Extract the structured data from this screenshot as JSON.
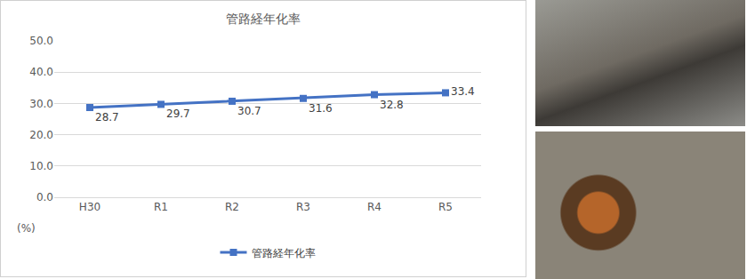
{
  "chart_data": {
    "type": "line",
    "title": "管路経年化率",
    "categories": [
      "H30",
      "R1",
      "R2",
      "R3",
      "R4",
      "R5"
    ],
    "series": [
      {
        "name": "管路経年化率",
        "color": "#4472c4",
        "marker": "square",
        "values": [
          28.7,
          29.7,
          30.7,
          31.6,
          32.8,
          33.4
        ]
      }
    ],
    "ylim": [
      0,
      50
    ],
    "yticks": [
      {
        "value": 0,
        "label": "0.0"
      },
      {
        "value": 10,
        "label": "10.0"
      },
      {
        "value": 20,
        "label": "20.0"
      },
      {
        "value": 30,
        "label": "30.0"
      },
      {
        "value": 40,
        "label": "40.0"
      },
      {
        "value": 50,
        "label": "50.0"
      }
    ],
    "y_label": "(%)",
    "grid": true,
    "data_labels": true,
    "legend": "bottom"
  }
}
